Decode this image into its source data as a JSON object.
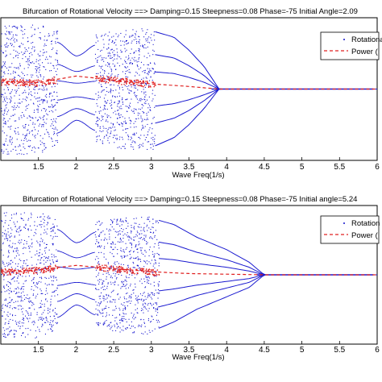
{
  "chart_data": [
    {
      "type": "scatter",
      "title": "Bifurcation of Rotational Velocity ==> Damping=0.15  Steepness=0.08  Phase=-75  Initial Angle=2.09",
      "xlabel": "Wave Freq(1/s)",
      "ylabel": "",
      "xlim": [
        1.0,
        6.0
      ],
      "xticks": [
        "1.5",
        "2",
        "2.5",
        "3",
        "3.5",
        "4",
        "4.5",
        "5",
        "5.5",
        "6"
      ],
      "grid": false,
      "legend_position": "top-right",
      "legend": [
        "Rotational",
        "Power ("
      ],
      "convergence_freq": 3.9,
      "chaos_bands": [
        [
          1.0,
          1.75
        ],
        [
          2.25,
          3.05
        ]
      ],
      "series": [
        {
          "name": "Rotational",
          "style": "blue dots",
          "x": [
            1.5,
            2.0,
            2.5,
            3.0,
            3.3,
            3.5,
            3.7,
            3.9,
            4.5,
            6.0
          ],
          "y_upper": [
            0.95,
            0.75,
            0.85,
            0.9,
            0.8,
            0.6,
            0.35,
            0.0,
            0.0,
            0.0
          ],
          "y_lower": [
            -0.95,
            -0.65,
            -0.85,
            -0.9,
            -0.75,
            -0.55,
            -0.3,
            0.0,
            0.0,
            0.0
          ]
        },
        {
          "name": "Power (",
          "style": "red dashed",
          "x": [
            1.0,
            1.5,
            2.0,
            2.5,
            3.0,
            3.5,
            3.9,
            4.5,
            5.0,
            5.5,
            6.0
          ],
          "y": [
            0.12,
            0.1,
            0.2,
            0.14,
            0.08,
            0.04,
            0.0,
            0.0,
            0.0,
            0.0,
            0.0
          ]
        }
      ]
    },
    {
      "type": "scatter",
      "title": "Bifurcation of Rotational Velocity ==> Damping=0.15  Steepness=0.08  Phase=-75   Initial angle=5.24",
      "xlabel": "Wave Freq(1/s)",
      "ylabel": "",
      "xlim": [
        1.0,
        6.0
      ],
      "xticks": [
        "1.5",
        "2",
        "2.5",
        "3",
        "3.5",
        "4",
        "4.5",
        "5",
        "5.5",
        "6"
      ],
      "grid": false,
      "legend_position": "top-right",
      "legend": [
        "Rotation",
        "Power ("
      ],
      "convergence_freq": 4.5,
      "chaos_bands": [
        [
          1.0,
          1.75
        ],
        [
          2.25,
          3.1
        ]
      ],
      "series": [
        {
          "name": "Rotation",
          "style": "blue dots",
          "x": [
            1.5,
            2.0,
            2.5,
            3.0,
            3.3,
            3.6,
            4.0,
            4.3,
            4.5,
            6.0
          ],
          "y_upper": [
            0.95,
            0.75,
            0.85,
            0.9,
            0.8,
            0.6,
            0.4,
            0.2,
            0.0,
            0.0
          ],
          "y_lower": [
            -0.95,
            -0.65,
            -0.85,
            -0.9,
            -0.75,
            -0.55,
            -0.35,
            -0.2,
            0.0,
            0.0
          ]
        },
        {
          "name": "Power (",
          "style": "red dashed",
          "x": [
            1.0,
            1.5,
            2.0,
            2.5,
            3.0,
            3.5,
            4.0,
            4.5,
            5.0,
            5.5,
            6.0
          ],
          "y": [
            0.05,
            0.08,
            0.15,
            0.1,
            0.05,
            0.02,
            0.01,
            0.0,
            0.0,
            0.0,
            0.0
          ]
        }
      ]
    }
  ]
}
